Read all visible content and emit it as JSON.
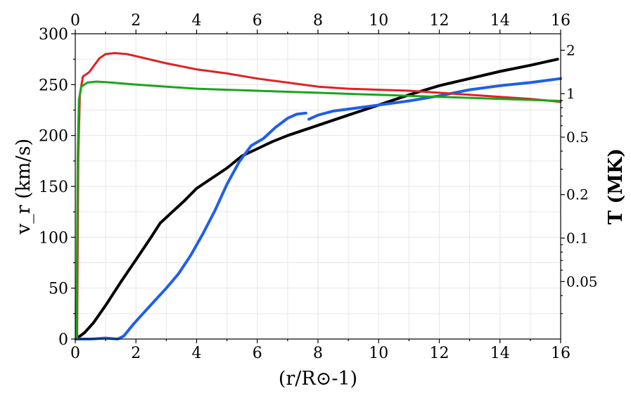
{
  "chart_data": {
    "type": "line",
    "xlabel": "(r/R⊙-1)",
    "ylabel": "v_r (km/s)",
    "y2label": "T (MK)",
    "xlim": [
      0,
      16
    ],
    "ylim": [
      0,
      300
    ],
    "y2lim": [
      0.02,
      2.6
    ],
    "y2scale": "log",
    "x_ticks": [
      0,
      2,
      4,
      6,
      8,
      10,
      12,
      14,
      16
    ],
    "top_x_ticks": [
      0,
      2,
      4,
      6,
      8,
      10,
      12,
      14,
      16
    ],
    "y_ticks": [
      0,
      50,
      100,
      150,
      200,
      250,
      300
    ],
    "y2_ticks": [
      0.05,
      0.1,
      0.2,
      0.5,
      1,
      2
    ],
    "y2_tick_labels": [
      "0.05",
      "0.1",
      "0.2",
      "0.5",
      "1",
      "2"
    ],
    "grid": true,
    "series": [
      {
        "axis": "left",
        "color": "#000000",
        "width": 4,
        "points": [
          [
            0.02,
            0
          ],
          [
            0.3,
            6
          ],
          [
            0.6,
            16
          ],
          [
            1.0,
            33
          ],
          [
            1.5,
            56
          ],
          [
            2.0,
            78
          ],
          [
            2.5,
            100
          ],
          [
            2.8,
            114
          ],
          [
            3.2,
            125
          ],
          [
            3.6,
            136
          ],
          [
            4.0,
            148
          ],
          [
            4.5,
            158
          ],
          [
            5.0,
            168
          ],
          [
            5.5,
            180
          ],
          [
            6.0,
            187
          ],
          [
            6.5,
            194
          ],
          [
            7.0,
            200
          ],
          [
            8.0,
            210
          ],
          [
            9.0,
            220
          ],
          [
            10.0,
            230
          ],
          [
            11.0,
            240
          ],
          [
            12.0,
            249
          ],
          [
            13.0,
            256
          ],
          [
            14.0,
            263
          ],
          [
            15.0,
            269
          ],
          [
            15.9,
            275
          ]
        ]
      },
      {
        "axis": "left",
        "color": "#1f5fe8",
        "width": 4,
        "segments": [
          [
            [
              0.05,
              0
            ],
            [
              0.5,
              0
            ],
            [
              1.0,
              1
            ],
            [
              1.4,
              0
            ],
            [
              1.6,
              3
            ],
            [
              1.9,
              14
            ],
            [
              2.2,
              24
            ],
            [
              2.6,
              37
            ],
            [
              3.0,
              50
            ],
            [
              3.4,
              64
            ],
            [
              3.8,
              82
            ],
            [
              4.2,
              103
            ],
            [
              4.6,
              126
            ],
            [
              5.0,
              152
            ],
            [
              5.4,
              174
            ],
            [
              5.8,
              190
            ],
            [
              6.2,
              197
            ],
            [
              6.6,
              208
            ],
            [
              7.0,
              217
            ],
            [
              7.3,
              221
            ],
            [
              7.6,
              222
            ]
          ],
          [
            [
              7.7,
              216
            ],
            [
              8.0,
              220
            ],
            [
              8.5,
              224
            ],
            [
              9.0,
              226
            ],
            [
              10.0,
              230
            ],
            [
              11.0,
              234
            ],
            [
              12.0,
              239
            ],
            [
              13.0,
              245
            ],
            [
              14.0,
              249
            ],
            [
              15.0,
              252
            ],
            [
              16.0,
              256
            ]
          ]
        ]
      },
      {
        "axis": "left",
        "color": "#e02222",
        "width": 3,
        "points": [
          [
            0.06,
            0
          ],
          [
            0.1,
            180
          ],
          [
            0.15,
            240
          ],
          [
            0.25,
            258
          ],
          [
            0.45,
            262
          ],
          [
            0.6,
            268
          ],
          [
            0.8,
            276
          ],
          [
            1.0,
            280
          ],
          [
            1.3,
            281
          ],
          [
            1.7,
            280
          ],
          [
            2.0,
            278
          ],
          [
            3.0,
            271
          ],
          [
            4.0,
            265
          ],
          [
            5.0,
            261
          ],
          [
            6.0,
            256
          ],
          [
            7.0,
            252
          ],
          [
            8.0,
            248
          ],
          [
            9.0,
            246
          ],
          [
            10.0,
            245
          ],
          [
            11.0,
            244
          ],
          [
            12.0,
            242
          ],
          [
            13.0,
            240
          ],
          [
            14.0,
            238
          ],
          [
            15.0,
            236
          ],
          [
            16.0,
            233
          ]
        ]
      },
      {
        "axis": "left",
        "color": "#1aa51a",
        "width": 3,
        "points": [
          [
            0.04,
            0
          ],
          [
            0.08,
            180
          ],
          [
            0.12,
            235
          ],
          [
            0.2,
            248
          ],
          [
            0.4,
            252
          ],
          [
            0.7,
            253
          ],
          [
            1.2,
            252
          ],
          [
            2.0,
            250
          ],
          [
            3.0,
            248
          ],
          [
            4.0,
            246
          ],
          [
            5.0,
            245
          ],
          [
            6.0,
            244
          ],
          [
            7.0,
            243
          ],
          [
            8.0,
            242
          ],
          [
            9.0,
            241
          ],
          [
            10.0,
            240
          ],
          [
            11.0,
            239
          ],
          [
            12.0,
            238
          ],
          [
            13.0,
            237
          ],
          [
            14.0,
            236
          ],
          [
            15.0,
            235
          ],
          [
            16.0,
            234
          ]
        ]
      }
    ]
  }
}
